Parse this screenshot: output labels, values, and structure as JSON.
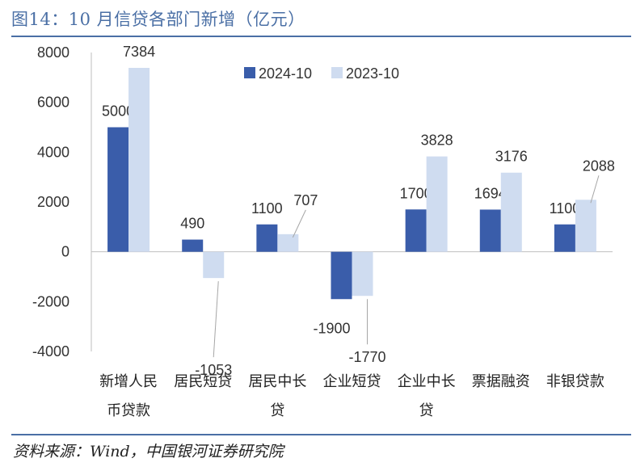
{
  "title": "图14：10 月信贷各部门新增（亿元）",
  "source": "资料来源：Wind，中国银河证券研究院",
  "colors": {
    "series_2024": "#3a5daa",
    "series_2023": "#cfdcf0"
  },
  "chart_data": {
    "type": "bar",
    "categories": [
      [
        "新增人民",
        "币贷款"
      ],
      [
        "居民短贷"
      ],
      [
        "居民中长",
        "贷"
      ],
      [
        "企业短贷"
      ],
      [
        "企业中长",
        "贷"
      ],
      [
        "票据融资"
      ],
      [
        "非银贷款"
      ]
    ],
    "series": [
      {
        "name": "2024-10",
        "values": [
          5000,
          490,
          1100,
          -1900,
          1700,
          1694,
          1100
        ]
      },
      {
        "name": "2023-10",
        "values": [
          7384,
          -1053,
          707,
          -1770,
          3828,
          3176,
          2088
        ]
      }
    ],
    "ylim": [
      -4000,
      8000
    ],
    "yticks": [
      8000,
      6000,
      4000,
      2000,
      0,
      -2000,
      -4000
    ],
    "legend_position": "top-right",
    "grid": false
  }
}
